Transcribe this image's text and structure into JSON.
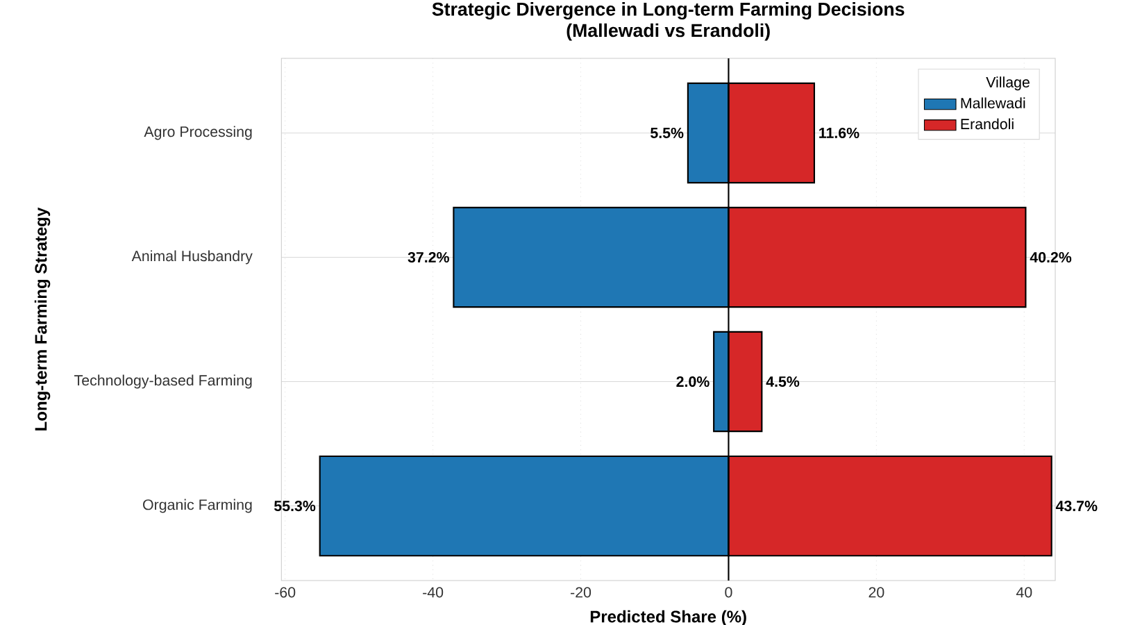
{
  "chart_data": {
    "type": "bar",
    "orientation": "horizontal",
    "title": "Strategic Divergence in Long-term Farming Decisions\n(Mallewadi vs Erandoli)",
    "xlabel": "Predicted Share (%)",
    "ylabel": "Long-term Farming Strategy",
    "legend_title": "Village",
    "categories": [
      "Agro Processing",
      "Animal Husbandry",
      "Technology-based Farming",
      "Organic Farming"
    ],
    "series": [
      {
        "name": "Mallewadi",
        "color": "#1f77b4",
        "base": [
          -5.5,
          -37.2,
          -2.0,
          -55.3
        ],
        "values": [
          5.5,
          37.2,
          2.0,
          55.3
        ],
        "value_labels": [
          "5.5%",
          "37.2%",
          "2.0%",
          "55.3%"
        ]
      },
      {
        "name": "Erandoli",
        "color": "#d62728",
        "values": [
          11.6,
          40.2,
          4.5,
          43.7
        ],
        "value_labels": [
          "11.6%",
          "40.2%",
          "4.5%",
          "43.7%"
        ]
      }
    ],
    "xlim": [
      -60.5,
      44.2
    ],
    "xticks": [
      -60,
      -40,
      -20,
      0,
      20,
      40
    ],
    "ref_lines": [
      {
        "axis": "x",
        "value": 0,
        "color": "#000000"
      }
    ],
    "grid": true,
    "legend": "top right"
  }
}
